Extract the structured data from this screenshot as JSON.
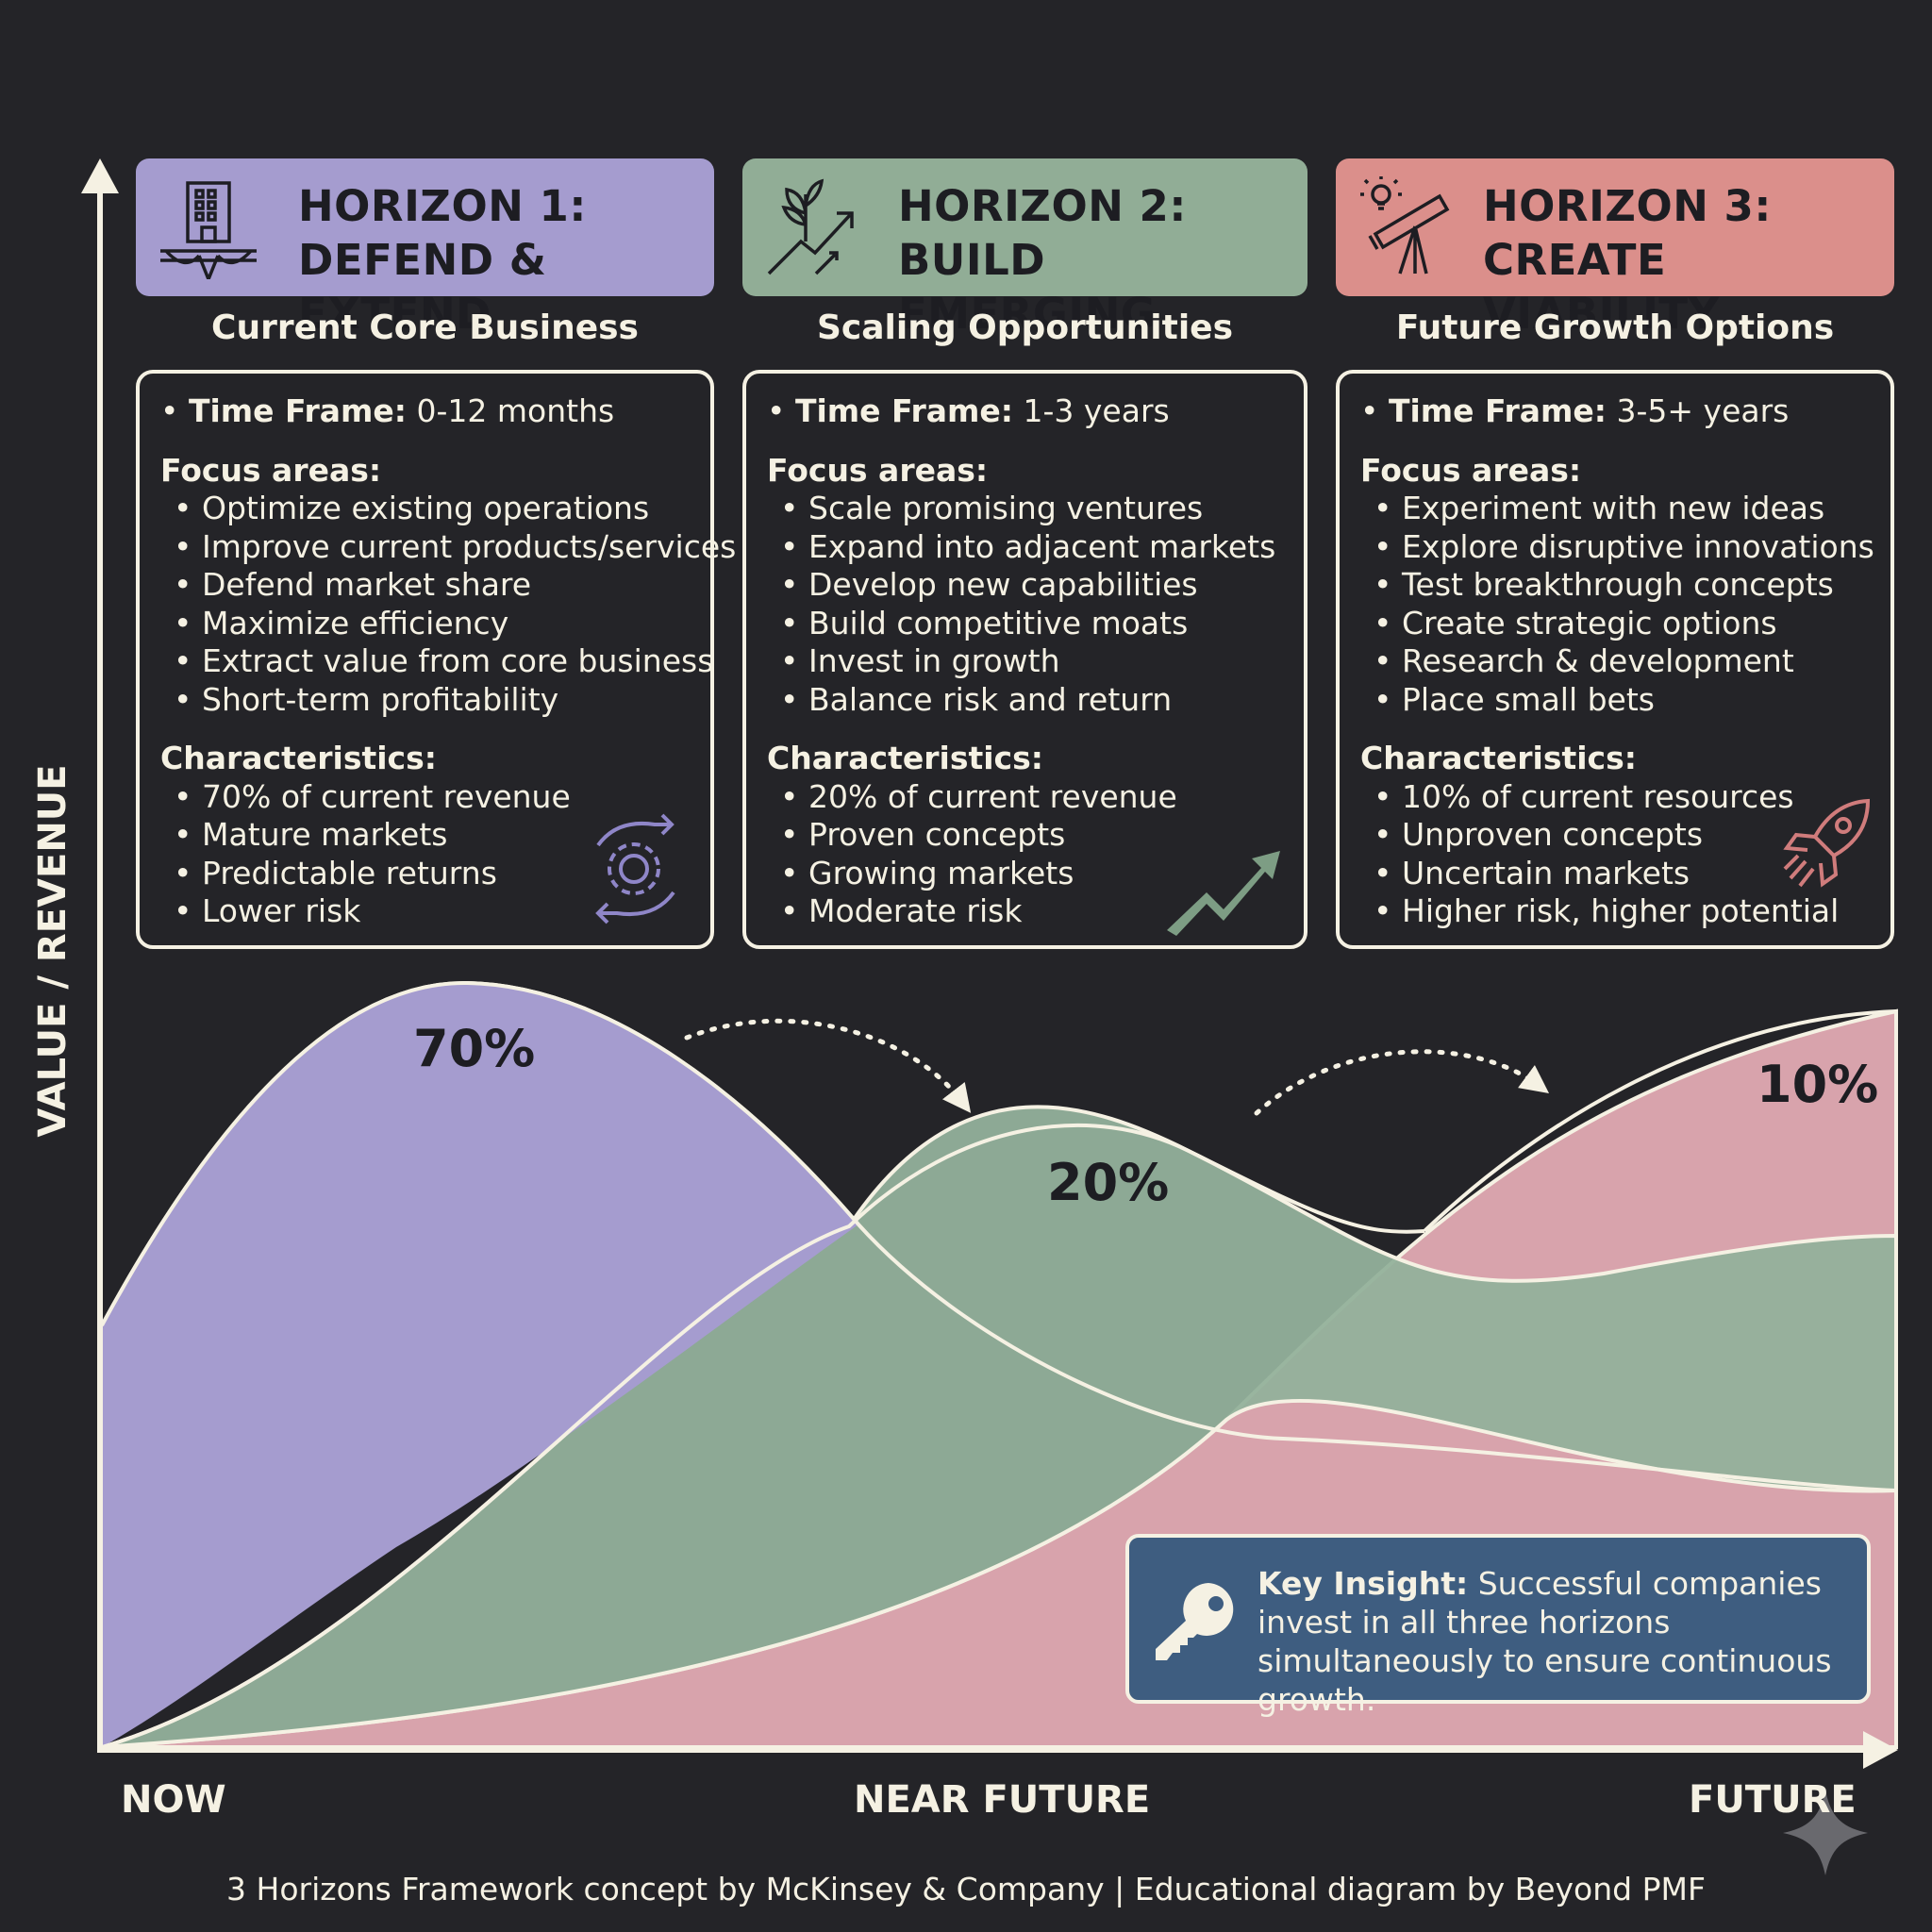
{
  "axes": {
    "y_label": "VALUE / REVENUE",
    "x_labels": [
      "NOW",
      "NEAR FUTURE",
      "FUTURE"
    ]
  },
  "horizons": [
    {
      "line1": "HORIZON 1:",
      "line2": "DEFEND & EXTEND",
      "subtitle": "Current Core Business",
      "color": "#a59ccf",
      "icon": "building-bridge-icon",
      "timeframe_label": "Time Frame:",
      "timeframe_value": "0-12 months",
      "focus_heading": "Focus areas:",
      "focus": [
        "Optimize existing operations",
        "Improve current products/services",
        "Defend market share",
        "Maximize efficiency",
        "Extract value from core business",
        "Short-term profitability"
      ],
      "char_heading": "Characteristics:",
      "characteristics": [
        "70% of current revenue",
        "Mature markets",
        "Predictable returns",
        "Lower risk"
      ],
      "deco_icon": "gear-cycle-icon",
      "share": "70%"
    },
    {
      "line1": "HORIZON 2:",
      "line2": "BUILD EMERGING",
      "subtitle": "Scaling Opportunities",
      "color": "#91ad96",
      "icon": "plant-growth-icon",
      "timeframe_label": "Time Frame:",
      "timeframe_value": "1-3 years",
      "focus_heading": "Focus areas:",
      "focus": [
        "Scale promising ventures",
        "Expand into adjacent markets",
        "Develop new capabilities",
        "Build competitive moats",
        "Invest in growth",
        "Balance risk and return"
      ],
      "char_heading": "Characteristics:",
      "characteristics": [
        "20% of current revenue",
        "Proven concepts",
        "Growing markets",
        "Moderate risk"
      ],
      "deco_icon": "trend-up-arrow-icon",
      "share": "20%"
    },
    {
      "line1": "HORIZON 3:",
      "line2": "CREATE VIABILITY",
      "subtitle": "Future Growth Options",
      "color": "#db8f8b",
      "icon": "telescope-lightbulb-icon",
      "timeframe_label": "Time Frame:",
      "timeframe_value": "3-5+ years",
      "focus_heading": "Focus areas:",
      "focus": [
        "Experiment with new ideas",
        "Explore disruptive innovations",
        "Test breakthrough concepts",
        "Create strategic options",
        "Research & development",
        "Place small bets"
      ],
      "char_heading": "Characteristics:",
      "characteristics": [
        "10% of current resources",
        "Unproven concepts",
        "Uncertain markets",
        "Higher risk, higher potential"
      ],
      "deco_icon": "rocket-icon",
      "share": "10%"
    }
  ],
  "insight": {
    "label": "Key Insight:",
    "text": "Successful companies invest in all three horizons simultaneously to ensure continuous growth.",
    "icon": "key-icon",
    "color": "#3e5d80"
  },
  "footer": "3 Horizons Framework concept by McKinsey & Company | Educational diagram by Beyond PMF"
}
